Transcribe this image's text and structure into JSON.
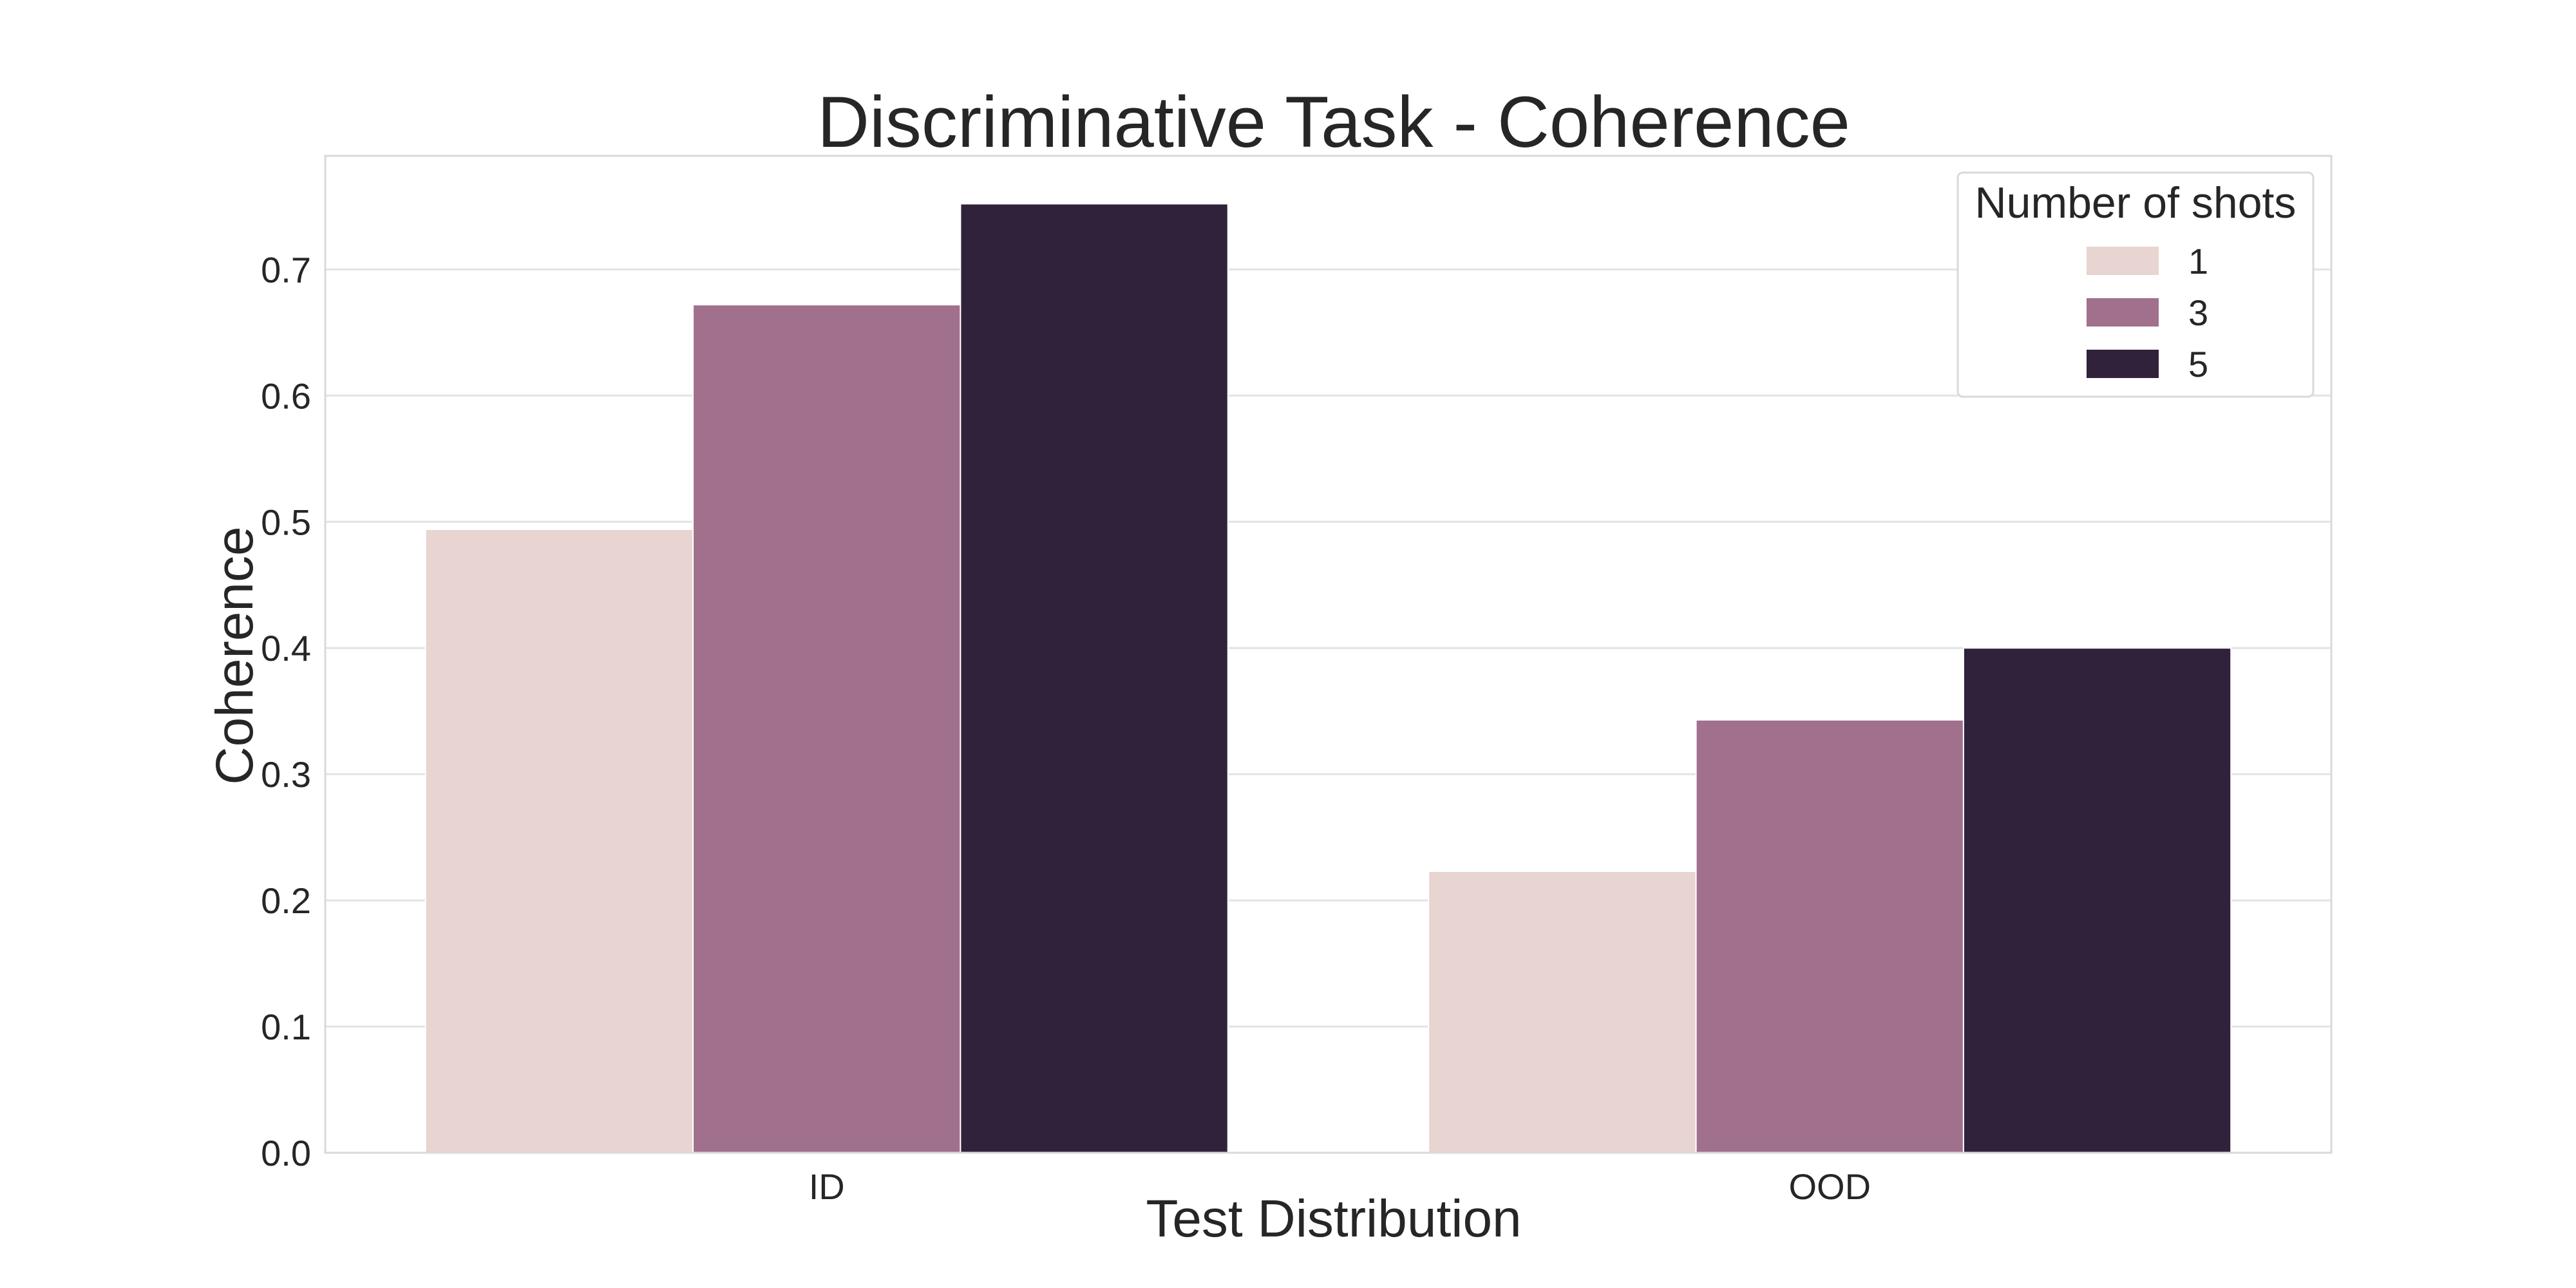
{
  "chart_data": {
    "type": "bar",
    "title": "Discriminative Task - Coherence",
    "xlabel": "Test Distribution",
    "ylabel": "Coherence",
    "categories": [
      "ID",
      "OOD"
    ],
    "series": [
      {
        "name": "1",
        "values": [
          0.494,
          0.223
        ],
        "color": "#e8d4d0"
      },
      {
        "name": "3",
        "values": [
          0.672,
          0.343
        ],
        "color": "#a0708c"
      },
      {
        "name": "5",
        "values": [
          0.752,
          0.4
        ],
        "color": "#2f223a"
      }
    ],
    "ylim": [
      0,
      0.79
    ],
    "yticks": [
      "0.0",
      "0.1",
      "0.2",
      "0.3",
      "0.4",
      "0.5",
      "0.6",
      "0.7"
    ],
    "grid": true,
    "legend": {
      "title": "Number of shots",
      "placement": "top-right"
    }
  }
}
